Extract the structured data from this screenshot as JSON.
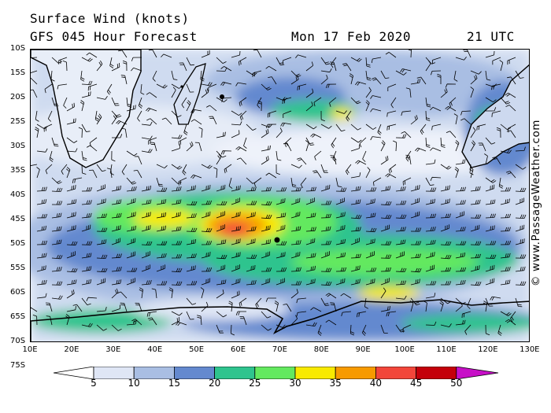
{
  "header": {
    "title": "Surface Wind (knots)",
    "forecast": "GFS 045 Hour Forecast",
    "date": "Mon 17 Feb 2020",
    "time": "21 UTC"
  },
  "map": {
    "lat_labels": [
      "10S",
      "15S",
      "20S",
      "25S",
      "30S",
      "35S",
      "40S",
      "45S",
      "50S",
      "55S",
      "60S",
      "65S",
      "70S",
      "75S"
    ],
    "lon_labels": [
      "10E",
      "20E",
      "30E",
      "40E",
      "50E",
      "60E",
      "70E",
      "80E",
      "90E",
      "100E",
      "110E",
      "120E",
      "130E"
    ],
    "colors": {
      "land_outline": "#000000",
      "calm": "#f4f6fb"
    }
  },
  "colorbar": {
    "labels": [
      "5",
      "10",
      "15",
      "20",
      "25",
      "30",
      "35",
      "40",
      "45",
      "50"
    ],
    "colors": [
      "#ffffff",
      "#dfe6f5",
      "#a9bee3",
      "#6489cf",
      "#2fc48e",
      "#63e95f",
      "#f8ea00",
      "#f79a00",
      "#f2463a",
      "#c4000a",
      "#c70fc7"
    ]
  },
  "copyright": "© www.PassageWeather.com"
}
